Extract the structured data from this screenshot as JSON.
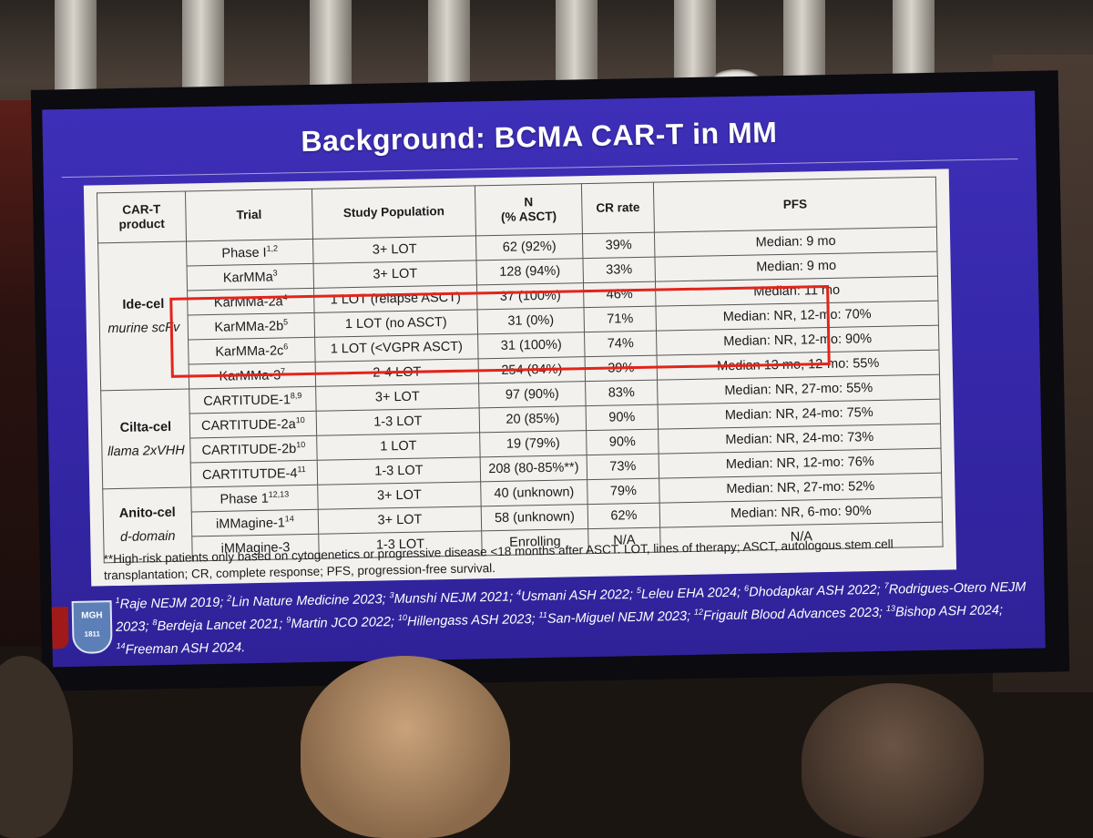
{
  "slide": {
    "title": "Background: BCMA CAR-T in MM",
    "headers": [
      "CAR-T product",
      "Trial",
      "Study Population",
      "N (% ASCT)",
      "CR rate",
      "PFS"
    ],
    "header_n_line1": "N",
    "header_n_line2": "(% ASCT)",
    "header_product_line1": "CAR-T",
    "header_product_line2": "product",
    "groups": [
      {
        "name": "Ide-cel",
        "subtitle": "murine scFv"
      },
      {
        "name": "Cilta-cel",
        "subtitle": "llama 2xVHH"
      },
      {
        "name": "Anito-cel",
        "subtitle": "d-domain"
      }
    ],
    "rows": [
      {
        "trial": "Phase I",
        "sup": "1,2",
        "population": "3+ LOT",
        "n": "62 (92%)",
        "cr": "39%",
        "pfs": "Median: 9 mo"
      },
      {
        "trial": "KarMMa",
        "sup": "3",
        "population": "3+ LOT",
        "n": "128 (94%)",
        "cr": "33%",
        "pfs": "Median: 9 mo"
      },
      {
        "trial": "KarMMa-2a",
        "sup": "4",
        "population": "1 LOT (relapse ASCT)",
        "n": "37 (100%)",
        "cr": "46%",
        "pfs": "Median: 11 mo"
      },
      {
        "trial": "KarMMa-2b",
        "sup": "5",
        "population": "1 LOT (no ASCT)",
        "n": "31 (0%)",
        "cr": "71%",
        "pfs": "Median: NR, 12-mo: 70%"
      },
      {
        "trial": "KarMMa-2c",
        "sup": "6",
        "population": "1 LOT (<VGPR ASCT)",
        "n": "31 (100%)",
        "cr": "74%",
        "pfs": "Median: NR, 12-mo: 90%"
      },
      {
        "trial": "KarMMa-3",
        "sup": "7",
        "population": "2-4 LOT",
        "n": "254 (84%)",
        "cr": "39%",
        "pfs": "Median 13 mo, 12-mo: 55%"
      },
      {
        "trial": "CARTITUDE-1",
        "sup": "8,9",
        "population": "3+ LOT",
        "n": "97 (90%)",
        "cr": "83%",
        "pfs": "Median: NR, 27-mo: 55%"
      },
      {
        "trial": "CARTITUDE-2a",
        "sup": "10",
        "population": "1-3 LOT",
        "n": "20 (85%)",
        "cr": "90%",
        "pfs": "Median: NR, 24-mo: 75%"
      },
      {
        "trial": "CARTITUDE-2b",
        "sup": "10",
        "population": "1 LOT",
        "n": "19 (79%)",
        "cr": "90%",
        "pfs": "Median: NR, 24-mo: 73%"
      },
      {
        "trial": "CARTITUTDE-4",
        "sup": "11",
        "population": "1-3 LOT",
        "n": "208 (80-85%**)",
        "cr": "73%",
        "pfs": "Median: NR, 12-mo: 76%"
      },
      {
        "trial": "Phase 1",
        "sup": "12,13",
        "population": "3+ LOT",
        "n": "40 (unknown)",
        "cr": "79%",
        "pfs": "Median: NR, 27-mo: 52%"
      },
      {
        "trial": "iMMagine-1",
        "sup": "14",
        "population": "3+ LOT",
        "n": "58 (unknown)",
        "cr": "62%",
        "pfs": "Median: NR, 6-mo: 90%"
      },
      {
        "trial": "iMMagine-3",
        "sup": "",
        "population": "1-3 LOT",
        "n": "Enrolling",
        "cr": "N/A",
        "pfs": "N/A"
      }
    ],
    "footnote": "**High-risk patients only based on cytogenetics or progressive disease <18 months after ASCT. LOT, lines of therapy; ASCT, autologous stem cell transplantation; CR, complete response; PFS, progression-free survival.",
    "references": [
      {
        "n": "1",
        "text": "Raje NEJM 2019; "
      },
      {
        "n": "2",
        "text": "Lin Nature Medicine 2023; "
      },
      {
        "n": "3",
        "text": "Munshi NEJM 2021; "
      },
      {
        "n": "4",
        "text": "Usmani ASH 2022; "
      },
      {
        "n": "5",
        "text": "Leleu EHA 2024; "
      },
      {
        "n": "6",
        "text": "Dhodapkar ASH 2022; "
      },
      {
        "n": "7",
        "text": "Rodrigues-Otero NEJM 2023; "
      },
      {
        "n": "8",
        "text": "Berdeja Lancet 2021; "
      },
      {
        "n": "9",
        "text": "Martin JCO 2022; "
      },
      {
        "n": "10",
        "text": "Hillengass ASH 2023; "
      },
      {
        "n": "11",
        "text": "San-Miguel NEJM 2023; "
      },
      {
        "n": "12",
        "text": "Frigault Blood Advances 2023; "
      },
      {
        "n": "13",
        "text": "Bishop ASH 2024; "
      },
      {
        "n": "14",
        "text": "Freeman ASH 2024."
      }
    ],
    "logo_text": "MGH",
    "logo_year": "1811"
  },
  "colors": {
    "slide_bg": "#3527a8",
    "highlight_box": "#e3241b",
    "table_bg": "#f2f1ee"
  }
}
